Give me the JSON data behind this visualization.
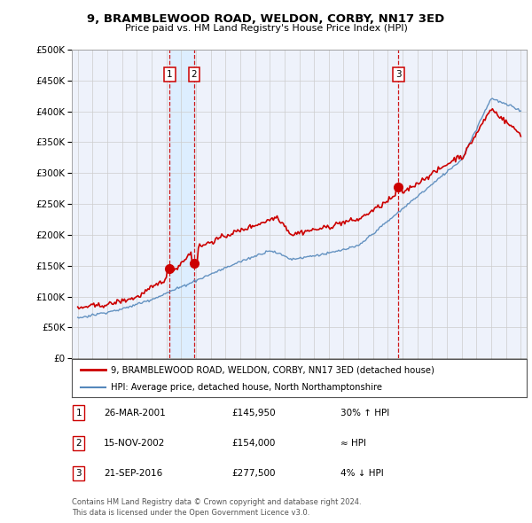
{
  "title": "9, BRAMBLEWOOD ROAD, WELDON, CORBY, NN17 3ED",
  "subtitle": "Price paid vs. HM Land Registry's House Price Index (HPI)",
  "legend_line1": "9, BRAMBLEWOOD ROAD, WELDON, CORBY, NN17 3ED (detached house)",
  "legend_line2": "HPI: Average price, detached house, North Northamptonshire",
  "transactions": [
    {
      "num": 1,
      "date": "26-MAR-2001",
      "price": "£145,950",
      "relation": "30% ↑ HPI",
      "year": 2001.23
    },
    {
      "num": 2,
      "date": "15-NOV-2002",
      "price": "£154,000",
      "relation": "≈ HPI",
      "year": 2002.88
    },
    {
      "num": 3,
      "date": "21-SEP-2016",
      "price": "£277,500",
      "relation": "4% ↓ HPI",
      "year": 2016.72
    }
  ],
  "footer": "Contains HM Land Registry data © Crown copyright and database right 2024.\nThis data is licensed under the Open Government Licence v3.0.",
  "red_color": "#cc0000",
  "blue_color": "#5588bb",
  "shade_color": "#ddeeff",
  "vline_color": "#cc0000",
  "background_color": "#ffffff",
  "plot_bg_color": "#eef2fb",
  "grid_color": "#cccccc",
  "ylim": [
    0,
    500000
  ],
  "yticks": [
    0,
    50000,
    100000,
    150000,
    200000,
    250000,
    300000,
    350000,
    400000,
    450000,
    500000
  ],
  "xlim_start": 1994.6,
  "xlim_end": 2025.4,
  "xticks": [
    1995,
    1996,
    1997,
    1998,
    1999,
    2000,
    2001,
    2002,
    2003,
    2004,
    2005,
    2006,
    2007,
    2008,
    2009,
    2010,
    2011,
    2012,
    2013,
    2014,
    2015,
    2016,
    2017,
    2018,
    2019,
    2020,
    2021,
    2022,
    2023,
    2024,
    2025
  ]
}
